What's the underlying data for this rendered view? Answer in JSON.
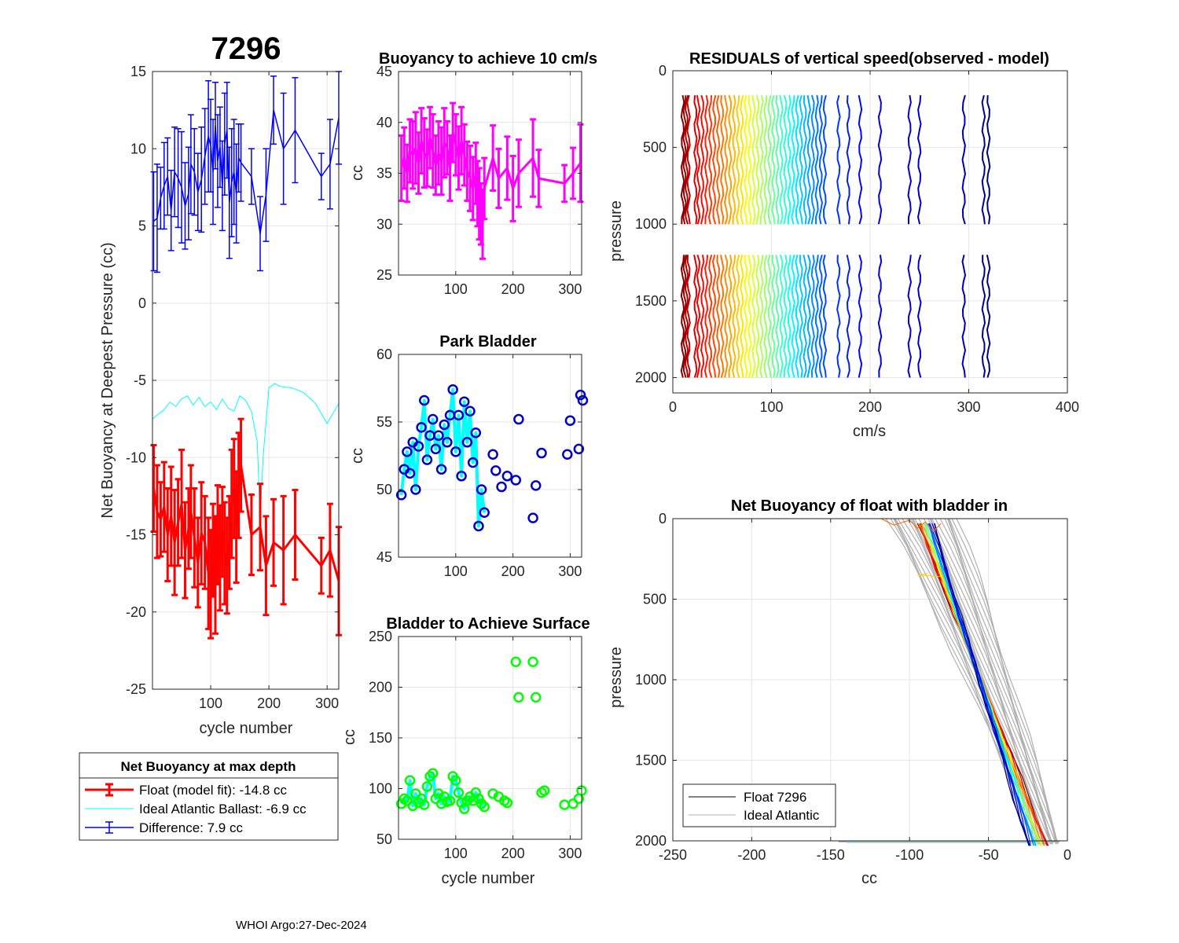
{
  "float_id": "7296",
  "footer": "WHOI Argo:27-Dec-2024",
  "colors": {
    "red": "#ff0000",
    "blue": "#0000ff",
    "cyan": "#00ffff",
    "magenta": "#ff00ff",
    "green": "#00ff00",
    "dark_blue": "#0000cc",
    "gray": "#b0b0b0"
  },
  "legend_main": {
    "title": "Net Buoyancy at max depth",
    "items": [
      "Float (model fit): -14.8 cc",
      "Ideal Atlantic Ballast:  -6.9 cc",
      "Difference:   7.9 cc"
    ]
  },
  "legend_nb": {
    "items": [
      "Float 7296",
      "Ideal Atlantic"
    ]
  },
  "chart_data": [
    {
      "id": "main",
      "type": "line",
      "title": "7296",
      "xlabel": "cycle number",
      "ylabel": "Net Buoyancy at Deepest Pressure (cc)",
      "xlim": [
        0,
        320
      ],
      "ylim": [
        -25,
        15
      ],
      "xticks": [
        100,
        200,
        300
      ],
      "yticks": [
        -25,
        -20,
        -15,
        -10,
        -5,
        0,
        5,
        10,
        15
      ],
      "series": [
        {
          "name": "Difference",
          "color": "#0000ff",
          "x": [
            2,
            8,
            14,
            20,
            26,
            32,
            38,
            44,
            50,
            56,
            62,
            66,
            72,
            78,
            84,
            90,
            96,
            100,
            104,
            108,
            112,
            116,
            120,
            124,
            128,
            132,
            136,
            140,
            144,
            148,
            152,
            170,
            185,
            195,
            208,
            225,
            245,
            290,
            305,
            320
          ],
          "y": [
            5.3,
            5.5,
            6.8,
            7.6,
            8.2,
            6.0,
            8.5,
            8.1,
            7.5,
            6.3,
            7.1,
            9.0,
            8.5,
            7.2,
            8.0,
            9.5,
            10.8,
            10.2,
            8.5,
            11.5,
            9.2,
            10.1,
            7.6,
            10.3,
            11.2,
            6.5,
            7.8,
            8.5,
            7.1,
            9.4,
            9.1,
            8.2,
            4.5,
            7.0,
            12.5,
            10.0,
            11.2,
            8.2,
            9.0,
            12.0
          ],
          "err": [
            3.2,
            3.5,
            2.0,
            2.8,
            2.5,
            2.6,
            2.9,
            3.2,
            3.6,
            2.8,
            3.0,
            3.2,
            2.8,
            2.5,
            3.4,
            3.1,
            3.6,
            3.0,
            3.4,
            2.8,
            3.0,
            2.6,
            2.9,
            3.3,
            3.1,
            3.6,
            3.5,
            3.4,
            3.2,
            2.2,
            2.5,
            1.8,
            2.4,
            3.0,
            2.2,
            3.6,
            3.4,
            1.5,
            2.9,
            3.0
          ]
        },
        {
          "name": "Ideal Atlantic Ballast",
          "color": "#00ffff",
          "x": [
            0,
            10,
            20,
            30,
            40,
            50,
            60,
            70,
            80,
            90,
            100,
            110,
            120,
            130,
            140,
            150,
            160,
            170,
            180,
            185,
            190,
            200,
            210,
            220,
            240,
            260,
            280,
            300,
            320
          ],
          "y": [
            -7.5,
            -7.2,
            -6.9,
            -6.4,
            -6.7,
            -6.2,
            -6.0,
            -6.6,
            -6.1,
            -6.7,
            -6.4,
            -6.9,
            -6.2,
            -6.8,
            -7.0,
            -6.0,
            -6.3,
            -7.0,
            -9.0,
            -14.0,
            -10.0,
            -5.5,
            -5.2,
            -5.4,
            -5.5,
            -5.8,
            -6.5,
            -7.8,
            -6.5
          ]
        },
        {
          "name": "Float (model fit)",
          "color": "#ff0000",
          "x": [
            2,
            8,
            14,
            20,
            26,
            32,
            38,
            44,
            50,
            56,
            62,
            66,
            72,
            78,
            84,
            90,
            96,
            100,
            104,
            108,
            112,
            116,
            120,
            124,
            128,
            132,
            136,
            140,
            144,
            148,
            152,
            170,
            185,
            195,
            208,
            225,
            245,
            290,
            305,
            320
          ],
          "y": [
            -12.0,
            -13.5,
            -14.0,
            -13.2,
            -15.0,
            -13.8,
            -15.5,
            -14.2,
            -13.0,
            -16.0,
            -14.6,
            -13.5,
            -15.2,
            -16.8,
            -14.9,
            -15.5,
            -17.5,
            -18.2,
            -16.0,
            -17.6,
            -15.0,
            -16.5,
            -14.8,
            -16.2,
            -17.0,
            -15.5,
            -13.0,
            -12.0,
            -14.5,
            -11.8,
            -10.5,
            -15.0,
            -14.5,
            -17.0,
            -15.5,
            -16.0,
            -15.0,
            -17.0,
            -16.0,
            -18.0
          ],
          "err": [
            2.8,
            3.0,
            2.4,
            2.9,
            3.0,
            3.2,
            3.4,
            2.8,
            3.5,
            3.1,
            2.6,
            3.0,
            3.2,
            2.9,
            3.3,
            3.0,
            3.6,
            3.5,
            3.0,
            3.8,
            3.2,
            3.4,
            2.9,
            3.3,
            3.1,
            3.0,
            3.5,
            3.2,
            3.6,
            3.4,
            3.0,
            2.6,
            2.8,
            3.2,
            2.8,
            3.5,
            2.9,
            1.8,
            3.0,
            3.5
          ]
        }
      ]
    },
    {
      "id": "buoy10",
      "type": "scatter",
      "title": "Buoyancy to achieve 10 cm/s",
      "xlabel": "",
      "ylabel": "cc",
      "xlim": [
        0,
        320
      ],
      "ylim": [
        25,
        45
      ],
      "xticks": [
        100,
        200,
        300
      ],
      "yticks": [
        25,
        30,
        35,
        40,
        45
      ],
      "series": [
        {
          "name": "buoyancy",
          "color": "#ff00ff",
          "x": [
            5,
            10,
            15,
            20,
            25,
            30,
            35,
            40,
            45,
            50,
            55,
            60,
            65,
            70,
            75,
            80,
            85,
            90,
            95,
            100,
            105,
            110,
            115,
            120,
            125,
            130,
            135,
            138,
            141,
            144,
            147,
            150,
            165,
            175,
            190,
            200,
            210,
            235,
            245,
            290,
            305,
            318
          ],
          "y": [
            35.5,
            36.5,
            35.0,
            37.2,
            36.8,
            37.5,
            36.0,
            38.2,
            37.0,
            36.5,
            38.5,
            37.2,
            35.8,
            37.0,
            36.2,
            38.0,
            37.5,
            35.5,
            39.0,
            37.8,
            36.5,
            38.2,
            36.8,
            35.2,
            34.5,
            33.5,
            35.0,
            33.0,
            32.0,
            31.0,
            30.0,
            33.5,
            36.5,
            34.5,
            35.5,
            33.5,
            35.0,
            36.5,
            34.5,
            34.0,
            35.0,
            36.0
          ],
          "err": [
            3.2,
            3.0,
            2.8,
            3.1,
            3.3,
            3.5,
            3.0,
            3.2,
            3.4,
            2.8,
            3.0,
            3.6,
            2.9,
            3.1,
            3.3,
            3.4,
            2.6,
            3.2,
            2.9,
            3.0,
            3.1,
            3.3,
            3.0,
            2.9,
            3.2,
            3.1,
            3.0,
            3.2,
            3.5,
            3.0,
            3.4,
            3.0,
            3.2,
            2.9,
            3.1,
            3.2,
            3.3,
            3.8,
            2.8,
            1.8,
            2.5,
            3.8
          ]
        }
      ]
    },
    {
      "id": "park",
      "type": "scatter",
      "title": "Park Bladder",
      "xlabel": "",
      "ylabel": "cc",
      "xlim": [
        0,
        320
      ],
      "ylim": [
        45,
        60
      ],
      "xticks": [
        100,
        200,
        300
      ],
      "yticks": [
        45,
        50,
        55,
        60
      ],
      "series": [
        {
          "name": "park",
          "color": "#0000cc",
          "line_color": "#00ffff",
          "x": [
            5,
            10,
            15,
            20,
            25,
            30,
            35,
            40,
            45,
            50,
            55,
            60,
            65,
            70,
            75,
            80,
            85,
            90,
            95,
            100,
            105,
            110,
            115,
            120,
            125,
            130,
            135,
            140,
            145,
            150,
            165,
            170,
            180,
            190,
            205,
            210,
            235,
            240,
            250,
            295,
            300,
            315,
            318,
            322
          ],
          "y": [
            49.6,
            51.5,
            52.8,
            51.2,
            53.5,
            50.0,
            53.2,
            54.6,
            56.6,
            52.2,
            54.0,
            55.2,
            53.0,
            54.0,
            51.5,
            54.8,
            53.5,
            55.5,
            57.4,
            52.8,
            55.5,
            51.0,
            56.5,
            53.5,
            55.8,
            52.0,
            54.2,
            47.3,
            50.0,
            48.3,
            52.6,
            51.4,
            50.2,
            51.0,
            50.7,
            55.2,
            47.9,
            50.3,
            52.7,
            52.6,
            55.1,
            53.0,
            57.0,
            56.6
          ]
        }
      ]
    },
    {
      "id": "surface",
      "type": "scatter",
      "title": "Bladder to Achieve Surface",
      "xlabel": "cycle number",
      "ylabel": "cc",
      "xlim": [
        0,
        320
      ],
      "ylim": [
        50,
        250
      ],
      "xticks": [
        100,
        200,
        300
      ],
      "yticks": [
        50,
        100,
        150,
        200,
        250
      ],
      "series": [
        {
          "name": "surface",
          "color": "#00ff00",
          "line_color": "#00ffff",
          "x": [
            5,
            10,
            15,
            20,
            25,
            30,
            35,
            40,
            45,
            50,
            55,
            60,
            65,
            70,
            75,
            80,
            85,
            90,
            95,
            100,
            105,
            110,
            115,
            120,
            125,
            130,
            135,
            140,
            145,
            150,
            165,
            175,
            185,
            190,
            205,
            210,
            235,
            240,
            250,
            255,
            290,
            305,
            315,
            320
          ],
          "y": [
            85,
            90,
            88,
            108,
            83,
            95,
            86,
            90,
            84,
            102,
            112,
            115,
            90,
            95,
            85,
            92,
            87,
            88,
            112,
            108,
            96,
            86,
            80,
            88,
            92,
            88,
            96,
            90,
            85,
            82,
            95,
            92,
            88,
            86,
            225,
            190,
            225,
            190,
            96,
            98,
            84,
            85,
            90,
            98
          ]
        }
      ]
    },
    {
      "id": "residuals",
      "type": "line",
      "title": "RESIDUALS of vertical speed(observed - model)",
      "xlabel": "cm/s",
      "ylabel": "pressure",
      "xlim": [
        0,
        400
      ],
      "ylim": [
        0,
        2100
      ],
      "y_reversed": true,
      "xticks": [
        0,
        100,
        200,
        300,
        400
      ],
      "yticks": [
        0,
        500,
        1000,
        1500,
        2000
      ],
      "profile_ranges": [
        [
          160,
          1000
        ],
        [
          1200,
          2000
        ]
      ],
      "x_centers": [
        10,
        12,
        14,
        16,
        23,
        26,
        30,
        34,
        38,
        42,
        46,
        50,
        54,
        58,
        62,
        66,
        70,
        74,
        78,
        82,
        86,
        90,
        94,
        98,
        102,
        106,
        110,
        114,
        118,
        122,
        126,
        130,
        134,
        138,
        142,
        146,
        150,
        154,
        168,
        178,
        190,
        210,
        240,
        250,
        295,
        315,
        320
      ]
    },
    {
      "id": "netbuoy",
      "type": "line",
      "title": "Net Buoyancy of float with bladder in",
      "xlabel": "cc",
      "ylabel": "pressure",
      "xlim": [
        -250,
        0
      ],
      "ylim": [
        0,
        2000
      ],
      "y_reversed": true,
      "xticks": [
        -250,
        -200,
        -150,
        -100,
        -50,
        0
      ],
      "yticks": [
        0,
        500,
        1000,
        1500,
        2000
      ],
      "ideal_x_surface": [
        -115,
        -70
      ],
      "ideal_x_bottom": [
        -20,
        -5
      ],
      "float_x_surface": [
        -95,
        -85
      ],
      "float_x_bottom": [
        -25,
        -12
      ]
    }
  ]
}
